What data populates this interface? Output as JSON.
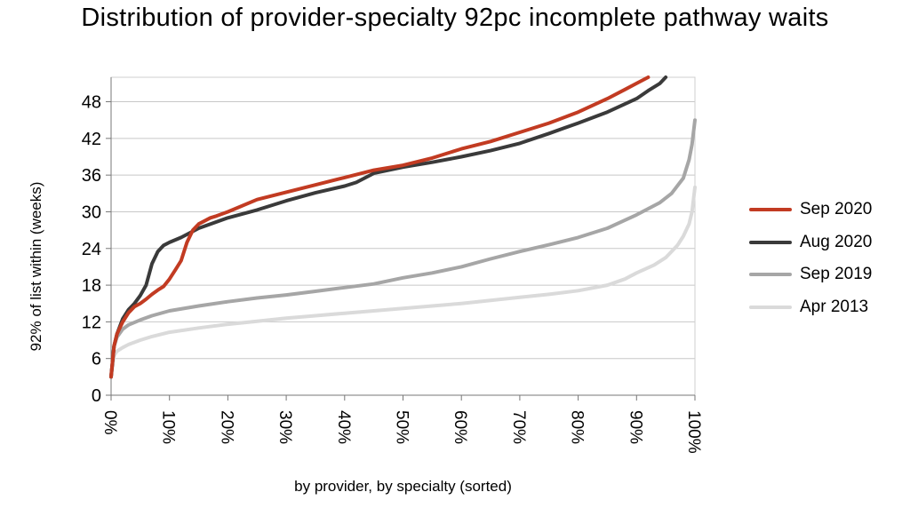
{
  "chart_data": {
    "type": "line",
    "title": "Distribution of provider-specialty 92pc incomplete pathway waits",
    "xlabel": "by provider, by specialty (sorted)",
    "ylabel": "92% of list within (weeks)",
    "xlim": [
      0,
      100
    ],
    "ylim": [
      0,
      52
    ],
    "x_ticks": [
      "0%",
      "10%",
      "20%",
      "30%",
      "40%",
      "50%",
      "60%",
      "70%",
      "80%",
      "90%",
      "100%"
    ],
    "y_ticks": [
      0,
      6,
      12,
      18,
      24,
      30,
      36,
      42,
      48
    ],
    "grid": "horizontal",
    "legend_position": "right",
    "series": [
      {
        "name": "Sep 2020",
        "color": "#c23b22",
        "x": [
          0,
          0.5,
          1,
          2,
          3,
          4,
          5,
          6,
          7,
          8,
          9,
          10,
          11,
          12,
          13,
          14,
          15,
          16,
          17,
          18,
          20,
          25,
          30,
          35,
          40,
          45,
          50,
          55,
          60,
          65,
          70,
          75,
          80,
          85,
          88,
          90,
          92
        ],
        "values": [
          3,
          8,
          10,
          12,
          13.5,
          14.5,
          15,
          15.7,
          16.5,
          17.2,
          17.8,
          19,
          20.5,
          22,
          25,
          27,
          28,
          28.5,
          29,
          29.3,
          30,
          32,
          33.2,
          34.4,
          35.6,
          36.8,
          37.6,
          38.8,
          40.3,
          41.5,
          43,
          44.5,
          46.3,
          48.5,
          50,
          51,
          52
        ]
      },
      {
        "name": "Aug 2020",
        "color": "#3a3a3a",
        "x": [
          0,
          0.5,
          1,
          2,
          3,
          4,
          5,
          6,
          7,
          8,
          9,
          10,
          12,
          15,
          20,
          25,
          30,
          35,
          40,
          42,
          45,
          50,
          55,
          60,
          65,
          70,
          75,
          80,
          85,
          90,
          92,
          94,
          95
        ],
        "values": [
          3,
          8,
          10,
          12.5,
          14,
          15,
          16.3,
          18,
          21.5,
          23.5,
          24.5,
          25,
          25.8,
          27.3,
          29,
          30.3,
          31.8,
          33.1,
          34.2,
          34.8,
          36.3,
          37.3,
          38.1,
          39,
          40,
          41.2,
          42.8,
          44.5,
          46.3,
          48.5,
          49.8,
          51,
          52
        ]
      },
      {
        "name": "Sep 2019",
        "color": "#a6a6a6",
        "x": [
          0,
          0.5,
          1,
          2,
          3,
          5,
          7,
          10,
          15,
          20,
          25,
          30,
          35,
          40,
          45,
          50,
          55,
          60,
          65,
          70,
          75,
          80,
          85,
          90,
          94,
          96,
          98,
          99,
          99.5,
          100
        ],
        "values": [
          3,
          8,
          9.5,
          10.8,
          11.5,
          12.3,
          13,
          13.8,
          14.6,
          15.3,
          15.9,
          16.4,
          17,
          17.6,
          18.2,
          19.2,
          20,
          21,
          22.3,
          23.5,
          24.6,
          25.8,
          27.3,
          29.5,
          31.5,
          33,
          35.5,
          38.5,
          41,
          45
        ]
      },
      {
        "name": "Apr 2013",
        "color": "#dadada",
        "x": [
          0,
          0.5,
          1,
          2,
          3,
          5,
          7,
          10,
          15,
          20,
          25,
          30,
          35,
          40,
          45,
          50,
          55,
          60,
          65,
          70,
          75,
          80,
          85,
          88,
          90,
          93,
          95,
          97,
          98,
          99,
          99.5,
          100
        ],
        "values": [
          3,
          6.5,
          7.2,
          7.8,
          8.3,
          9,
          9.6,
          10.3,
          11,
          11.6,
          12.1,
          12.6,
          13,
          13.4,
          13.8,
          14.2,
          14.6,
          15,
          15.5,
          16,
          16.5,
          17.1,
          18,
          19,
          20,
          21.3,
          22.5,
          24.5,
          26,
          28,
          30,
          34
        ]
      }
    ]
  }
}
